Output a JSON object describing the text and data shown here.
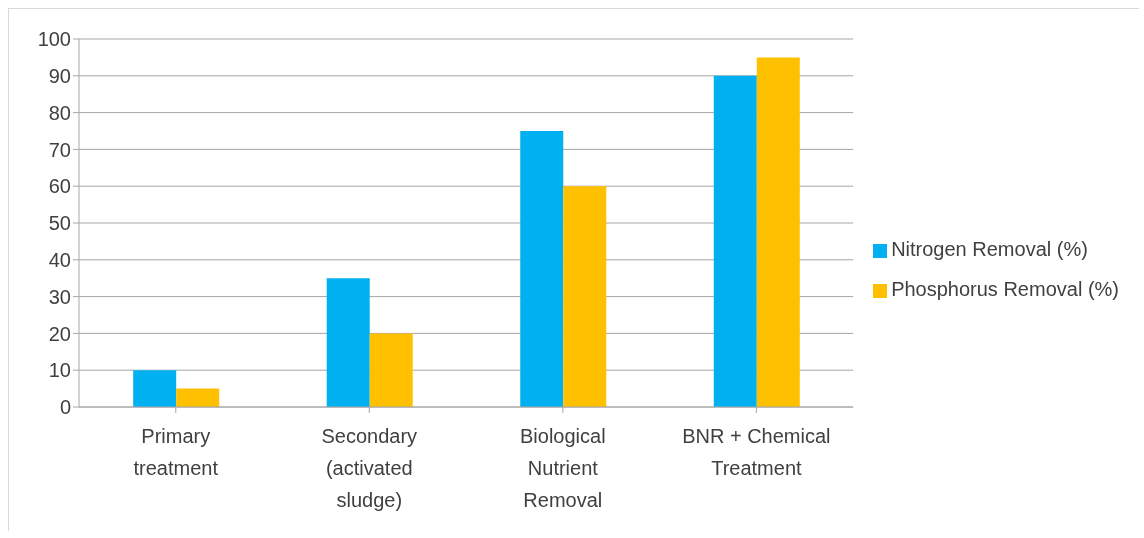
{
  "chart_data": {
    "type": "bar",
    "categories": [
      "Primary treatment",
      "Secondary (activated sludge)",
      "Biological Nutrient Removal",
      "BNR + Chemical Treatment"
    ],
    "series": [
      {
        "name": "Nitrogen Removal (%)",
        "color": "#00b0f0",
        "values": [
          10,
          35,
          75,
          90
        ]
      },
      {
        "name": "Phosphorus Removal (%)",
        "color": "#ffc000",
        "values": [
          5,
          20,
          60,
          95
        ]
      }
    ],
    "ylim": [
      0,
      100
    ],
    "yticks": [
      0,
      10,
      20,
      30,
      40,
      50,
      60,
      70,
      80,
      90,
      100
    ],
    "grid": "y",
    "legend": "right"
  }
}
